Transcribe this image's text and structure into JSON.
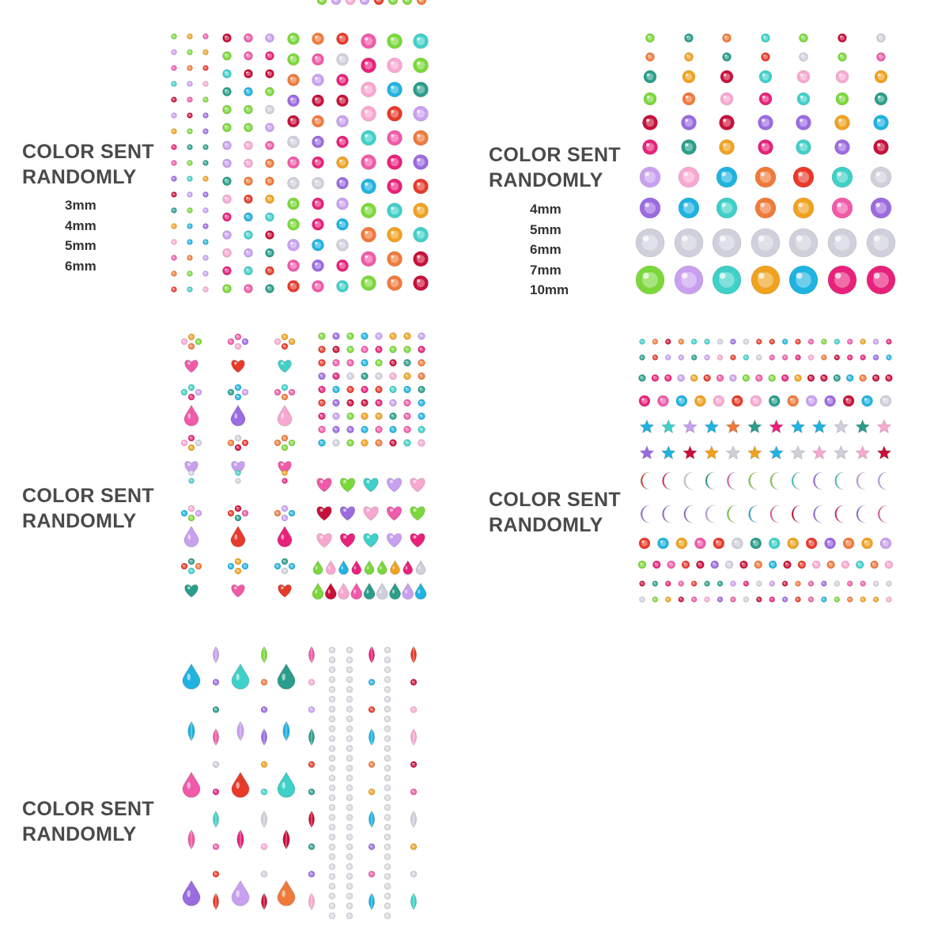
{
  "panels": [
    {
      "label_line1": "COLOR SENT",
      "label_line2": "RANDOMLY",
      "sizes": [
        "3mm",
        "4mm",
        "5mm",
        "6mm"
      ]
    },
    {
      "label_line1": "COLOR SENT",
      "label_line2": "RANDOMLY",
      "sizes": [
        "4mm",
        "5mm",
        "6mm",
        "7mm",
        "10mm"
      ]
    },
    {
      "label_line1": "COLOR SENT",
      "label_line2": "RANDOMLY"
    },
    {
      "label_line1": "COLOR SENT",
      "label_line2": "RANDOMLY"
    },
    {
      "label_line1": "COLOR SENT",
      "label_line2": "RANDOMLY"
    }
  ],
  "gem_colors": [
    "#e8227a",
    "#f05aa8",
    "#9b6be0",
    "#c9a0f0",
    "#1fb3e0",
    "#3fd0c8",
    "#7bd83a",
    "#f0a21f",
    "#e83a2a",
    "#c8103a",
    "#f8a8d0",
    "#d0d0dc",
    "#f07a3a",
    "#2a9e8a"
  ]
}
